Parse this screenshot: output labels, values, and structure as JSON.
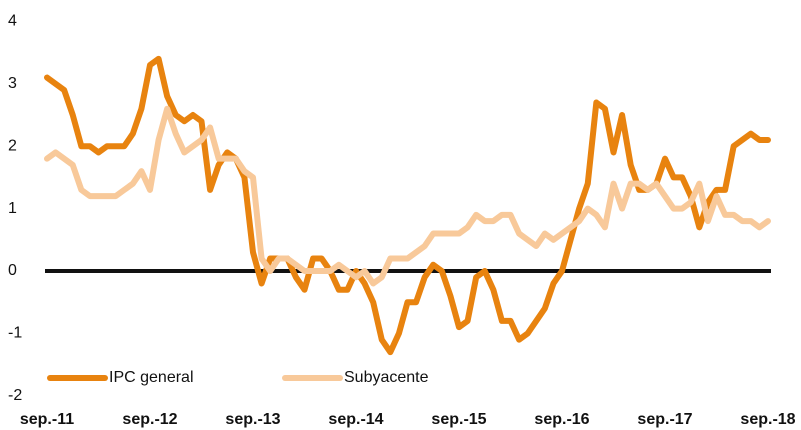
{
  "chart_data": {
    "type": "line",
    "categories": [
      "sep.-11",
      null,
      null,
      null,
      null,
      null,
      null,
      null,
      null,
      null,
      null,
      null,
      "sep.-12",
      null,
      null,
      null,
      null,
      null,
      null,
      null,
      null,
      null,
      null,
      null,
      "sep.-13",
      null,
      null,
      null,
      null,
      null,
      null,
      null,
      null,
      null,
      null,
      null,
      "sep.-14",
      null,
      null,
      null,
      null,
      null,
      null,
      null,
      null,
      null,
      null,
      null,
      "sep.-15",
      null,
      null,
      null,
      null,
      null,
      null,
      null,
      null,
      null,
      null,
      null,
      "sep.-16",
      null,
      null,
      null,
      null,
      null,
      null,
      null,
      null,
      null,
      null,
      null,
      "sep.-17",
      null,
      null,
      null,
      null,
      null,
      null,
      null,
      null,
      null,
      null,
      null,
      "sep.-18"
    ],
    "series": [
      {
        "name": "IPC general",
        "color": "#e8830f",
        "values": [
          3.1,
          3.0,
          2.9,
          2.5,
          2.0,
          2.0,
          1.9,
          2.0,
          2.0,
          2.0,
          2.2,
          2.6,
          3.3,
          3.4,
          2.8,
          2.5,
          2.4,
          2.5,
          2.4,
          1.3,
          1.7,
          1.9,
          1.8,
          1.5,
          0.3,
          -0.2,
          0.2,
          0.2,
          0.2,
          -0.1,
          -0.3,
          0.2,
          0.2,
          0.0,
          -0.3,
          -0.3,
          0.0,
          -0.2,
          -0.5,
          -1.1,
          -1.3,
          -1.0,
          -0.5,
          -0.5,
          -0.1,
          0.1,
          0.0,
          -0.4,
          -0.9,
          -0.8,
          -0.1,
          0.0,
          -0.3,
          -0.8,
          -0.8,
          -1.1,
          -1.0,
          -0.8,
          -0.6,
          -0.2,
          0.0,
          0.5,
          1.0,
          1.4,
          2.7,
          2.6,
          1.9,
          2.5,
          1.7,
          1.3,
          1.3,
          1.4,
          1.8,
          1.5,
          1.5,
          1.2,
          0.7,
          1.1,
          1.3,
          1.3,
          2.0,
          2.1,
          2.2,
          2.1,
          2.1
        ]
      },
      {
        "name": "Subyacente",
        "color": "#f8c99a",
        "values": [
          1.8,
          1.9,
          1.8,
          1.7,
          1.3,
          1.2,
          1.2,
          1.2,
          1.2,
          1.3,
          1.4,
          1.6,
          1.3,
          2.1,
          2.6,
          2.2,
          1.9,
          2.0,
          2.1,
          2.3,
          1.8,
          1.8,
          1.8,
          1.6,
          1.5,
          0.2,
          0.0,
          0.2,
          0.2,
          0.1,
          0.0,
          0.0,
          0.0,
          0.0,
          0.1,
          0.0,
          -0.1,
          0.0,
          -0.2,
          -0.1,
          0.2,
          0.2,
          0.2,
          0.3,
          0.4,
          0.6,
          0.6,
          0.6,
          0.6,
          0.7,
          0.9,
          0.8,
          0.8,
          0.9,
          0.9,
          0.6,
          0.5,
          0.4,
          0.6,
          0.5,
          0.6,
          0.7,
          0.8,
          1.0,
          0.9,
          0.7,
          1.4,
          1.0,
          1.4,
          1.4,
          1.3,
          1.4,
          1.2,
          1.0,
          1.0,
          1.1,
          1.4,
          0.8,
          1.2,
          0.9,
          0.9,
          0.8,
          0.8,
          0.7,
          0.8
        ]
      }
    ],
    "ylim": [
      -2,
      4
    ],
    "yticks": [
      -2,
      -1,
      0,
      1,
      2,
      3,
      4
    ],
    "grid": false,
    "legend": "lower left"
  }
}
